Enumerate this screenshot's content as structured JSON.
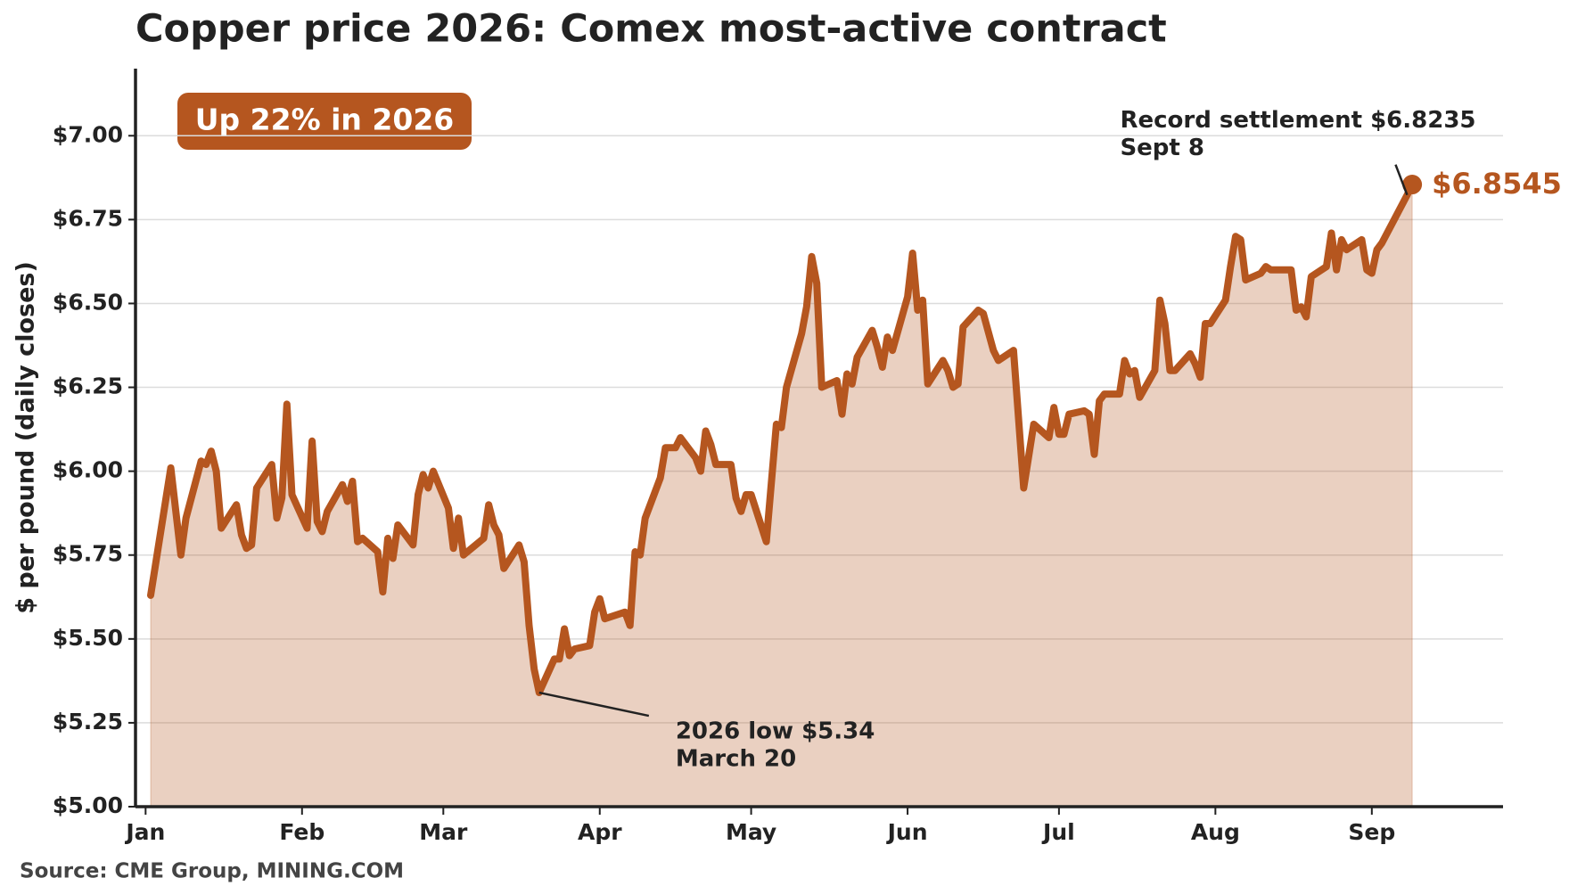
{
  "chart_data": {
    "type": "line",
    "title": "Copper price 2026: Comex most-active contract",
    "y_label": "$ per pound (daily closes)",
    "source": "Source: CME Group, MINING.COM",
    "badge": "Up 22% in 2026",
    "color": "#b5561f",
    "grid": true,
    "xlim": [
      -2,
      269
    ],
    "ylim": [
      5,
      7.2
    ],
    "xticks": [
      {
        "value": 0,
        "label": "Jan"
      },
      {
        "value": 31,
        "label": "Feb"
      },
      {
        "value": 59,
        "label": "Mar"
      },
      {
        "value": 90,
        "label": "Apr"
      },
      {
        "value": 120,
        "label": "May"
      },
      {
        "value": 151,
        "label": "Jun"
      },
      {
        "value": 181,
        "label": "Jul"
      },
      {
        "value": 212,
        "label": "Aug"
      },
      {
        "value": 243,
        "label": "Sep"
      }
    ],
    "yticks": [
      {
        "value": 5,
        "label": "$5.00"
      },
      {
        "value": 5.25,
        "label": "$5.25"
      },
      {
        "value": 5.5,
        "label": "$5.50"
      },
      {
        "value": 5.75,
        "label": "$5.75"
      },
      {
        "value": 6,
        "label": "$6.00"
      },
      {
        "value": 6.25,
        "label": "$6.25"
      },
      {
        "value": 6.5,
        "label": "$6.50"
      },
      {
        "value": 6.75,
        "label": "$6.75"
      },
      {
        "value": 7,
        "label": "$7.00"
      }
    ],
    "x": [
      1,
      5,
      7,
      8,
      11,
      12,
      13,
      14,
      15,
      18,
      19,
      20,
      21,
      22,
      25,
      26,
      27,
      28,
      29,
      32,
      33,
      34,
      35,
      36,
      39,
      40,
      41,
      42,
      43,
      46,
      47,
      48,
      49,
      50,
      53,
      54,
      55,
      56,
      57,
      60,
      61,
      62,
      63,
      67,
      68,
      69,
      70,
      71,
      74,
      75,
      76,
      77,
      78,
      81,
      82,
      83,
      84,
      85,
      88,
      89,
      90,
      91,
      95,
      96,
      97,
      98,
      99,
      102,
      103,
      105,
      106,
      109,
      110,
      111,
      112,
      113,
      116,
      117,
      118,
      119,
      120,
      123,
      125,
      126,
      127,
      130,
      131,
      132,
      133,
      134,
      137,
      138,
      139,
      140,
      141,
      144,
      145,
      146,
      147,
      148,
      151,
      152,
      153,
      154,
      155,
      158,
      159,
      160,
      161,
      162,
      165,
      166,
      168,
      169,
      172,
      174,
      176,
      179,
      180,
      181,
      182,
      183,
      186,
      187,
      188,
      189,
      190,
      193,
      194,
      195,
      196,
      197,
      200,
      201,
      202,
      203,
      204,
      207,
      208,
      209,
      210,
      211,
      214,
      215,
      216,
      217,
      218,
      221,
      222,
      223,
      224,
      227,
      228,
      229,
      230,
      231,
      234,
      235,
      236,
      237,
      238,
      241,
      242,
      243,
      244,
      245,
      250,
      251
    ],
    "values": [
      5.63,
      6.01,
      5.75,
      5.86,
      6.03,
      6.02,
      6.06,
      6.0,
      5.83,
      5.9,
      5.81,
      5.77,
      5.78,
      5.95,
      6.02,
      5.86,
      5.92,
      6.2,
      5.93,
      5.83,
      6.09,
      5.85,
      5.82,
      5.88,
      5.96,
      5.91,
      5.97,
      5.79,
      5.8,
      5.76,
      5.64,
      5.8,
      5.74,
      5.84,
      5.78,
      5.93,
      5.99,
      5.95,
      6.0,
      5.89,
      5.77,
      5.86,
      5.75,
      5.8,
      5.9,
      5.84,
      5.81,
      5.71,
      5.78,
      5.73,
      5.54,
      5.41,
      5.34,
      5.44,
      5.44,
      5.53,
      5.45,
      5.47,
      5.48,
      5.58,
      5.62,
      5.56,
      5.58,
      5.54,
      5.76,
      5.75,
      5.86,
      5.98,
      6.07,
      6.07,
      6.1,
      6.04,
      6.0,
      6.12,
      6.08,
      6.02,
      6.02,
      5.92,
      5.88,
      5.93,
      5.93,
      5.79,
      6.14,
      6.13,
      6.25,
      6.41,
      6.49,
      6.64,
      6.56,
      6.25,
      6.27,
      6.17,
      6.29,
      6.26,
      6.34,
      6.42,
      6.37,
      6.31,
      6.4,
      6.36,
      6.52,
      6.65,
      6.48,
      6.51,
      6.26,
      6.33,
      6.3,
      6.25,
      6.26,
      6.43,
      6.48,
      6.47,
      6.36,
      6.33,
      6.36,
      5.95,
      6.14,
      6.1,
      6.19,
      6.11,
      6.11,
      6.17,
      6.18,
      6.17,
      6.05,
      6.21,
      6.23,
      6.23,
      6.33,
      6.29,
      6.3,
      6.22,
      6.3,
      6.51,
      6.44,
      6.3,
      6.3,
      6.35,
      6.32,
      6.28,
      6.44,
      6.44,
      6.51,
      6.61,
      6.7,
      6.69,
      6.57,
      6.59,
      6.61,
      6.6,
      6.6,
      6.6,
      6.48,
      6.49,
      6.46,
      6.58,
      6.61,
      6.71,
      6.6,
      6.69,
      6.66,
      6.69,
      6.6,
      6.59,
      6.66,
      6.68,
      6.8235,
      6.8545
    ],
    "last_value_label": "$6.8545",
    "annotations": [
      {
        "lines": [
          "Record settlement $6.8235",
          "Sept 8"
        ],
        "x": 250,
        "y": 6.8235
      },
      {
        "lines": [
          "2026 low $5.34",
          "March 20"
        ],
        "x": 78,
        "y": 5.34
      }
    ]
  }
}
